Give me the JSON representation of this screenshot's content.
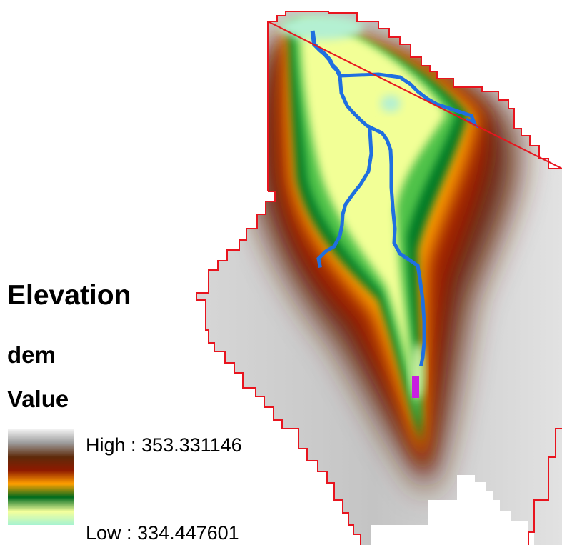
{
  "legend": {
    "title": "Elevation",
    "layer_name": "dem",
    "field_name": "Value",
    "high_label": "High : 353.331146",
    "low_label": "Low : 334.447601",
    "high_value": 353.331146,
    "low_value": 334.447601,
    "ramp_colors": [
      "#f2f2f2",
      "#9e9e9e",
      "#5e2a0a",
      "#8f1a00",
      "#ffa000",
      "#006b1e",
      "#f4ff9c",
      "#a6f3d2"
    ]
  },
  "map": {
    "boundary_color": "#e8141e",
    "stream_color": "#1f6fe0",
    "outlet_color": "#c81ee0",
    "background": "#ffffff"
  }
}
